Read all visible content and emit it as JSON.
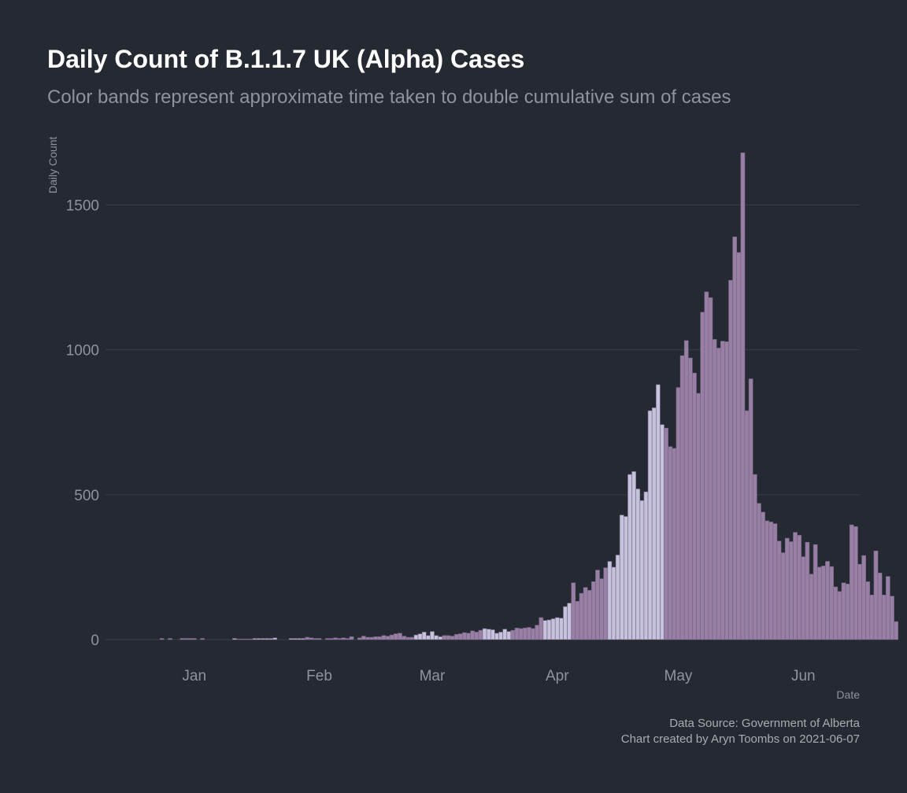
{
  "colors": {
    "background": "#252932",
    "grid": "#3a3e47",
    "band_dark": "#9a7fa5",
    "band_light": "#c7c2dc",
    "bar_edge": "#6f6385",
    "text_muted": "#8f939b"
  },
  "chart_data": {
    "type": "bar",
    "title": "Daily Count of B.1.1.7 UK (Alpha) Cases",
    "subtitle": "Color bands represent approximate time taken to double cumulative sum of cases",
    "xlabel": "Date",
    "ylabel": "Daily Count",
    "ylim": [
      0,
      1800
    ],
    "xlim": [
      "2020-12-10",
      "2021-06-15"
    ],
    "y_ticks": [
      0,
      500,
      1000,
      1500
    ],
    "x_ticks": [
      {
        "date": "2021-01-01",
        "label": "Jan"
      },
      {
        "date": "2021-02-01",
        "label": "Feb"
      },
      {
        "date": "2021-03-01",
        "label": "Mar"
      },
      {
        "date": "2021-04-01",
        "label": "Apr"
      },
      {
        "date": "2021-05-01",
        "label": "May"
      },
      {
        "date": "2021-06-01",
        "label": "Jun"
      }
    ],
    "grid": "horizontal",
    "start_date": "2020-12-15",
    "values": [
      0,
      0,
      0,
      0,
      0,
      0,
      0,
      0,
      0,
      4,
      0,
      4,
      0,
      0,
      4,
      4,
      4,
      4,
      0,
      4,
      0,
      0,
      0,
      0,
      0,
      0,
      0,
      4,
      2,
      2,
      2,
      2,
      4,
      4,
      4,
      4,
      4,
      6,
      0,
      0,
      0,
      4,
      4,
      4,
      4,
      8,
      6,
      4,
      4,
      0,
      4,
      4,
      6,
      4,
      6,
      4,
      10,
      0,
      6,
      12,
      8,
      8,
      10,
      10,
      14,
      12,
      16,
      20,
      22,
      12,
      8,
      8,
      16,
      20,
      26,
      14,
      28,
      14,
      10,
      14,
      14,
      12,
      18,
      20,
      24,
      22,
      30,
      26,
      32,
      38,
      36,
      34,
      22,
      26,
      36,
      28,
      32,
      40,
      38,
      40,
      42,
      38,
      50,
      76,
      66,
      68,
      72,
      76,
      74,
      114,
      126,
      196,
      132,
      160,
      180,
      170,
      200,
      240,
      210,
      248,
      270,
      250,
      292,
      430,
      425,
      570,
      580,
      520,
      480,
      510,
      790,
      800,
      880,
      742,
      730,
      666,
      660,
      870,
      980,
      1032,
      972,
      920,
      850,
      1130,
      1200,
      1180,
      1036,
      1006,
      1030,
      1028,
      1240,
      1390,
      1336,
      1680,
      790,
      900,
      570,
      470,
      440,
      410,
      406,
      400,
      340,
      300,
      350,
      338,
      370,
      360,
      286,
      336,
      226,
      328,
      250,
      254,
      270,
      252,
      182,
      166,
      196,
      192,
      396,
      390,
      260,
      290,
      200,
      154,
      306,
      230,
      154,
      218,
      150,
      62
    ],
    "bands": [
      {
        "start": "2020-12-15",
        "end": "2021-01-04",
        "color": "dark"
      },
      {
        "start": "2021-01-04",
        "end": "2021-01-29",
        "color": "light"
      },
      {
        "start": "2021-01-29",
        "end": "2021-02-25",
        "color": "dark"
      },
      {
        "start": "2021-02-25",
        "end": "2021-03-04",
        "color": "light"
      },
      {
        "start": "2021-03-04",
        "end": "2021-03-14",
        "color": "dark"
      },
      {
        "start": "2021-03-14",
        "end": "2021-03-21",
        "color": "light"
      },
      {
        "start": "2021-03-21",
        "end": "2021-03-29",
        "color": "dark"
      },
      {
        "start": "2021-03-29",
        "end": "2021-04-05",
        "color": "light"
      },
      {
        "start": "2021-04-05",
        "end": "2021-04-14",
        "color": "dark"
      },
      {
        "start": "2021-04-14",
        "end": "2021-04-28",
        "color": "light"
      },
      {
        "start": "2021-04-28",
        "end": "2021-06-06",
        "color": "dark"
      }
    ]
  },
  "caption": {
    "line1": "Data Source: Government of Alberta",
    "line2": "Chart created by Aryn Toombs on 2021-06-07"
  }
}
